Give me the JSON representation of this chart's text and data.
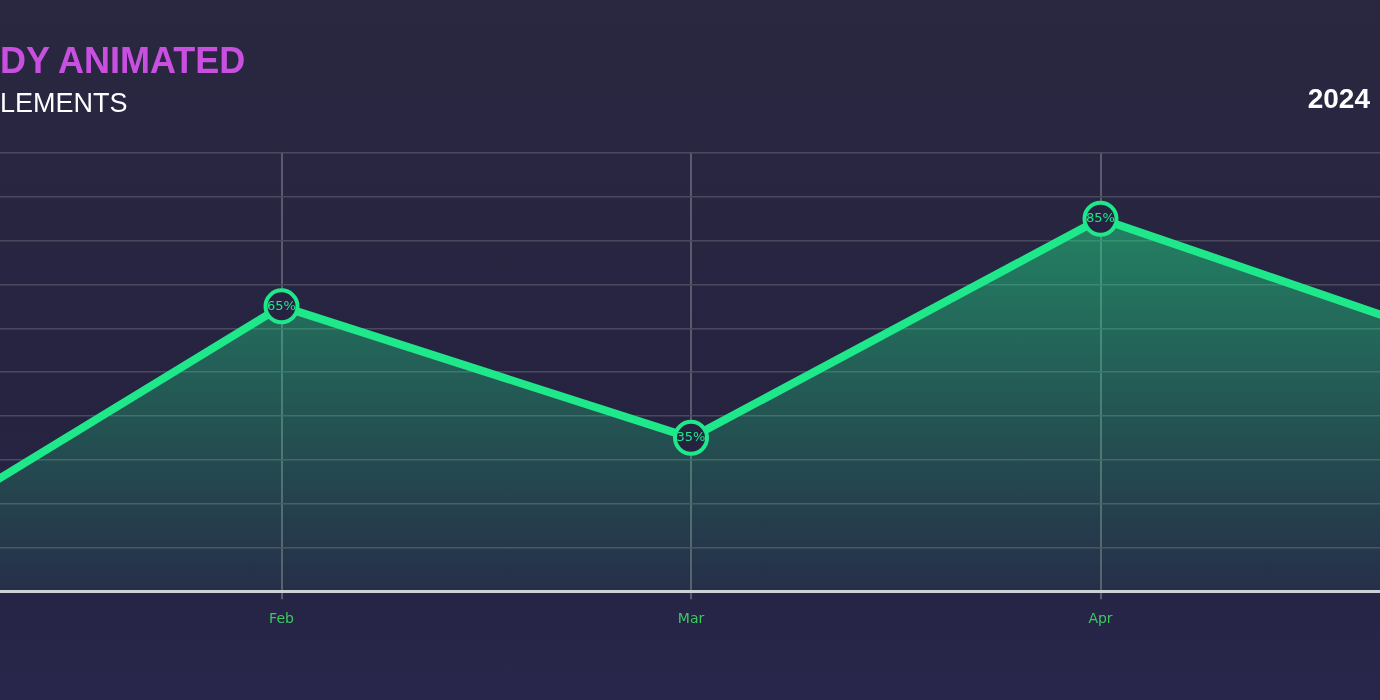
{
  "chart_data": {
    "type": "area",
    "title": "DY ANIMATED",
    "subtitle": "LEMENTS",
    "annotations": [
      "2024"
    ],
    "categories": [
      null,
      "Feb",
      "Mar",
      "Apr",
      null
    ],
    "series": [
      {
        "color": "#1ee88a",
        "values": [
          8,
          65,
          35,
          85,
          53
        ],
        "value_labels": [
          null,
          "65%",
          "35%",
          "85%",
          null
        ]
      }
    ],
    "ylim": [
      0,
      100
    ],
    "yticks": [
      {
        "value": 0,
        "label": null
      },
      {
        "value": 10,
        "label": null
      },
      {
        "value": 20,
        "label": null
      },
      {
        "value": 30,
        "label": null
      },
      {
        "value": 40,
        "label": null
      },
      {
        "value": 50,
        "label": null
      },
      {
        "value": 60,
        "label": null
      },
      {
        "value": 70,
        "label": null
      },
      {
        "value": 80,
        "label": null
      },
      {
        "value": 90,
        "label": null
      },
      {
        "value": 100,
        "label": null
      }
    ],
    "tick_labels": "x",
    "grid": true,
    "legend": false,
    "marker": "circle",
    "line_style": "solid"
  }
}
